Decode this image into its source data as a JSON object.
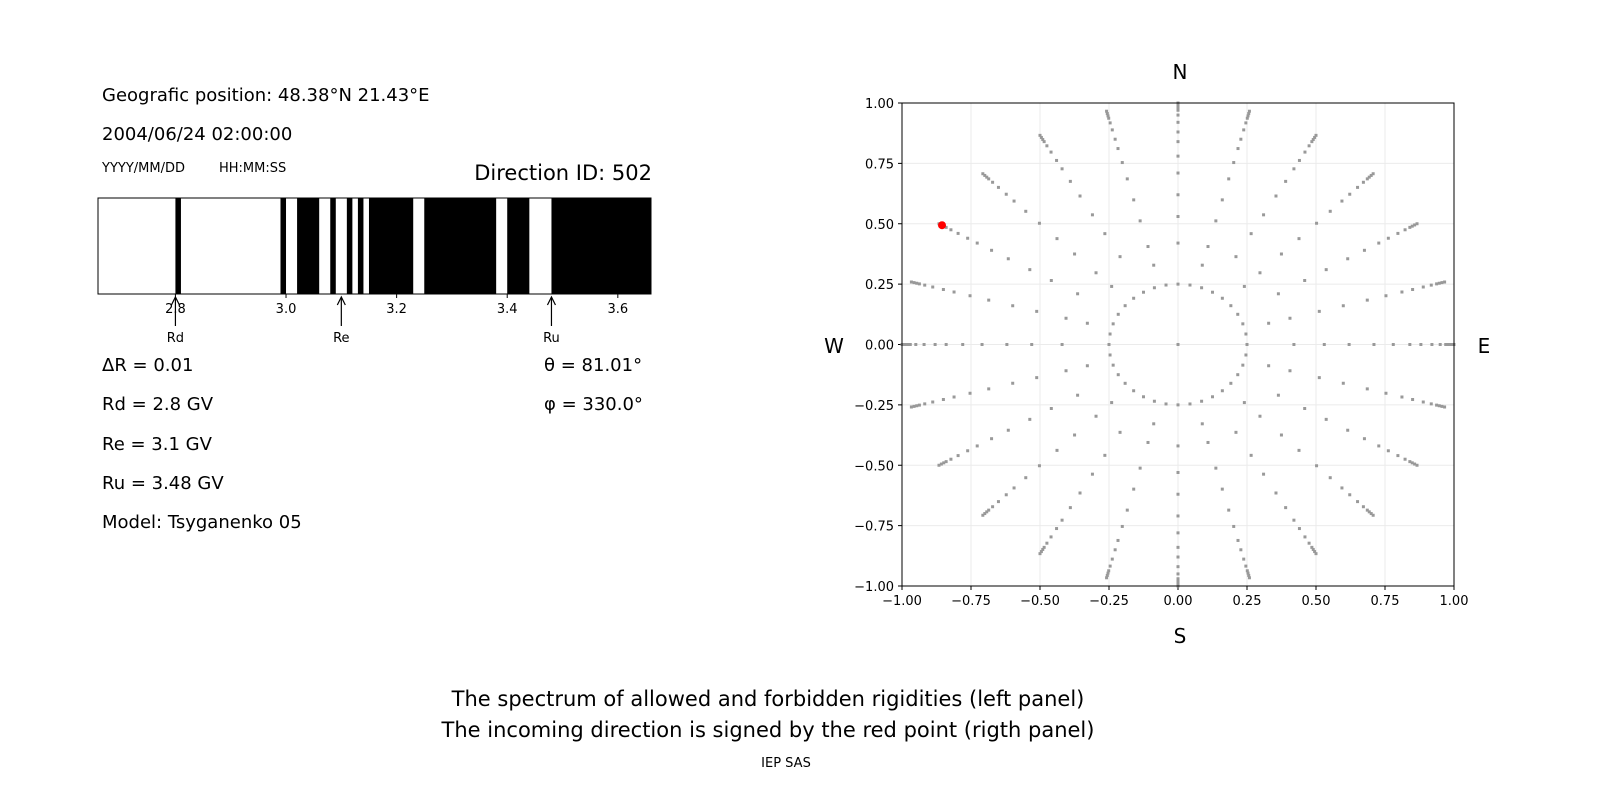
{
  "left_panel": {
    "position": "Geografic position: 48.38°N 21.43°E",
    "datetime": "2004/06/24 02:00:00",
    "date_format": "YYYY/MM/DD",
    "time_format": "HH:MM:SS",
    "direction_id": "Direction ID: 502",
    "delta_r": "ΔR = 0.01",
    "rd": "Rd = 2.8 GV",
    "re": "Re = 3.1 GV",
    "ru": "Ru = 3.48 GV",
    "model": "Model: Tsyganenko 05",
    "theta": "θ = 81.01°",
    "phi": "φ = 330.0°"
  },
  "compass": {
    "n": "N",
    "s": "S",
    "w": "W",
    "e": "E"
  },
  "captions": {
    "line1": "The spectrum of allowed and forbidden rigidities (left panel)",
    "line2": "The incoming direction is signed by the red point (rigth panel)",
    "credit": "IEP SAS"
  },
  "chart_data": [
    {
      "type": "bar",
      "xlim": [
        2.66,
        3.66
      ],
      "xticks": [
        "2.8",
        "3.0",
        "3.2",
        "3.4",
        "3.6"
      ],
      "forbidden_color": "#000000",
      "allowed_color": "#ffffff",
      "forbidden_intervals": [
        [
          2.8,
          2.81
        ],
        [
          2.99,
          3.0
        ],
        [
          3.02,
          3.06
        ],
        [
          3.08,
          3.09
        ],
        [
          3.11,
          3.12
        ],
        [
          3.13,
          3.14
        ],
        [
          3.15,
          3.23
        ],
        [
          3.25,
          3.38
        ],
        [
          3.4,
          3.44
        ],
        [
          3.48,
          3.66
        ]
      ],
      "markers": [
        {
          "label": "Rd",
          "x": 2.8
        },
        {
          "label": "Re",
          "x": 3.1
        },
        {
          "label": "Ru",
          "x": 3.48
        }
      ]
    },
    {
      "type": "scatter",
      "xlim": [
        -1,
        1
      ],
      "ylim": [
        -1,
        1
      ],
      "xticks": [
        "−1.00",
        "−0.75",
        "−0.50",
        "−0.25",
        "0.00",
        "0.25",
        "0.50",
        "0.75",
        "1.00"
      ],
      "yticks": [
        "−1.00",
        "−0.75",
        "−0.50",
        "−0.25",
        "0.00",
        "0.25",
        "0.50",
        "0.75",
        "1.00"
      ],
      "grid": true,
      "point_color": "#999999",
      "ray_azimuth_step_deg": 15,
      "ray_radii": [
        0.34,
        0.42,
        0.53,
        0.62,
        0.71,
        0.78,
        0.84,
        0.88,
        0.92,
        0.95,
        0.97,
        0.98,
        0.99,
        1.0
      ],
      "inner_ring_radius": 0.25,
      "inner_ring_points": 36,
      "center_point": [
        0,
        0
      ],
      "highlight": {
        "x": -0.855,
        "y": 0.494,
        "color": "#ff0000"
      }
    }
  ]
}
